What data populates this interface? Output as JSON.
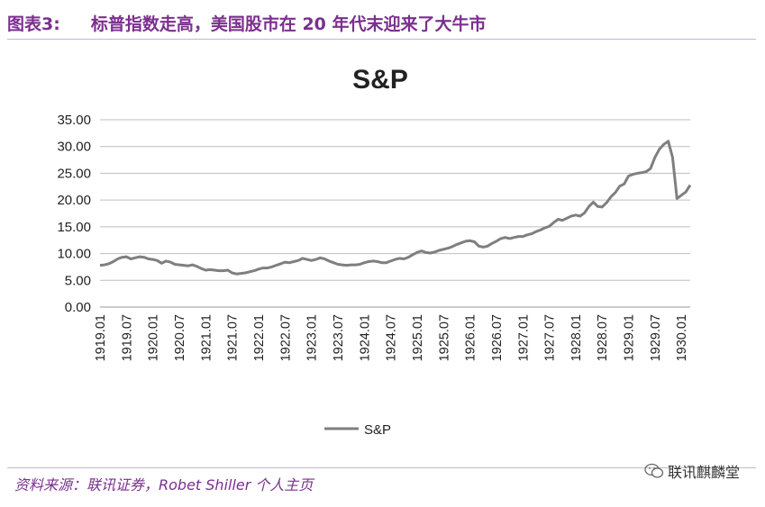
{
  "header": {
    "figure_number": "图表3:",
    "title": "标普指数走高，美国股市在 20 年代末迎来了大牛市"
  },
  "footer": {
    "source": "资料来源：联讯证券，Robet Shiller 个人主页",
    "watermark": "联讯麒麟堂",
    "watermark_icon": "wechat-icon"
  },
  "colors": {
    "accent": "#7b2f8f",
    "line": "#7f7f7f",
    "grid": "#bfbfbf"
  },
  "chart_data": {
    "type": "line",
    "title": "S&P",
    "ylim": [
      0,
      35
    ],
    "y_ticks": [
      "0.00",
      "5.00",
      "10.00",
      "15.00",
      "20.00",
      "25.00",
      "30.00",
      "35.00"
    ],
    "x_ticks": [
      "1919.01",
      "1919.07",
      "1920.01",
      "1920.07",
      "1921.01",
      "1921.07",
      "1922.01",
      "1922.07",
      "1923.01",
      "1923.07",
      "1924.01",
      "1924.07",
      "1925.01",
      "1925.07",
      "1926.01",
      "1926.07",
      "1927.01",
      "1927.07",
      "1928.01",
      "1928.07",
      "1929.01",
      "1929.07",
      "1930.01"
    ],
    "grid": true,
    "legend": "bottom",
    "series": [
      {
        "name": "S&P",
        "values": [
          7.8,
          7.9,
          8.1,
          8.5,
          9.0,
          9.3,
          9.4,
          9.0,
          9.2,
          9.4,
          9.3,
          9.0,
          8.9,
          8.7,
          8.2,
          8.6,
          8.4,
          8.0,
          7.9,
          7.8,
          7.7,
          7.9,
          7.6,
          7.2,
          6.9,
          7.0,
          6.9,
          6.8,
          6.8,
          6.9,
          6.4,
          6.2,
          6.3,
          6.4,
          6.6,
          6.8,
          7.1,
          7.3,
          7.3,
          7.5,
          7.8,
          8.1,
          8.4,
          8.3,
          8.5,
          8.7,
          9.1,
          8.9,
          8.7,
          8.9,
          9.2,
          9.0,
          8.6,
          8.3,
          8.0,
          7.9,
          7.8,
          7.9,
          7.9,
          8.0,
          8.3,
          8.5,
          8.6,
          8.5,
          8.3,
          8.3,
          8.6,
          8.9,
          9.1,
          9.0,
          9.3,
          9.8,
          10.2,
          10.5,
          10.2,
          10.1,
          10.3,
          10.6,
          10.8,
          11.0,
          11.3,
          11.7,
          12.0,
          12.3,
          12.4,
          12.2,
          11.4,
          11.2,
          11.4,
          11.9,
          12.3,
          12.8,
          13.0,
          12.8,
          13.0,
          13.2,
          13.2,
          13.5,
          13.7,
          14.1,
          14.4,
          14.8,
          15.1,
          15.8,
          16.4,
          16.2,
          16.6,
          17.0,
          17.2,
          17.0,
          17.6,
          18.8,
          19.6,
          18.8,
          18.7,
          19.5,
          20.6,
          21.4,
          22.6,
          23.0,
          24.5,
          24.8,
          25.0,
          25.1,
          25.3,
          25.9,
          28.0,
          29.5,
          30.4,
          31.0,
          28.0,
          20.3,
          20.9,
          21.5,
          22.8
        ]
      }
    ]
  }
}
